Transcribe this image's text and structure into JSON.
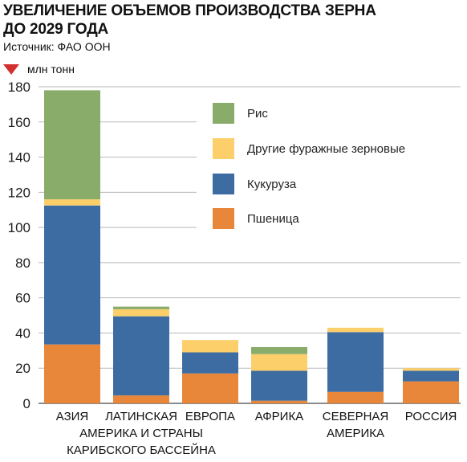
{
  "header": {
    "title_line1": "УВЕЛИЧЕНИЕ ОБЪЕМОВ ПРОИЗВОДСТВА ЗЕРНА",
    "title_line2": "ДО 2029 ГОДА",
    "source": "Источник: ФАО ООН",
    "unit": "млн тонн",
    "unit_marker_color": "#d32f2f"
  },
  "chart_data": {
    "type": "bar",
    "stacked": true,
    "title": "УВЕЛИЧЕНИЕ ОБЪЕМОВ ПРОИЗВОДСТВА ЗЕРНА ДО 2029 ГОДА",
    "ylabel": "млн тонн",
    "ylim": [
      0,
      180
    ],
    "yticks": [
      0,
      20,
      40,
      60,
      80,
      100,
      120,
      140,
      160,
      180
    ],
    "grid": true,
    "legend_position": "top-right",
    "categories": [
      [
        "АЗИЯ"
      ],
      [
        "ЛАТИНСКАЯ",
        "АМЕРИКА И СТРАНЫ",
        "КАРИБСКОГО БАССЕЙНА"
      ],
      [
        "ЕВРОПА"
      ],
      [
        "АФРИКА"
      ],
      [
        "СЕВЕРНАЯ",
        "АМЕРИКА"
      ],
      [
        "РОССИЯ"
      ]
    ],
    "series": [
      {
        "name": "Пшеница",
        "color": "#e8863a",
        "values": [
          33.5,
          4.5,
          17,
          1.5,
          6.5,
          12.5
        ]
      },
      {
        "name": "Кукуруза",
        "color": "#3d6ca3",
        "values": [
          79,
          45,
          12,
          17,
          34,
          6
        ]
      },
      {
        "name": "Другие фуражные зерновые",
        "color": "#fccf6b",
        "values": [
          3.5,
          4,
          7,
          9.5,
          2.5,
          1.5
        ]
      },
      {
        "name": "Рис",
        "color": "#8aac6b",
        "values": [
          62,
          1.5,
          0,
          4,
          0,
          0
        ]
      }
    ],
    "legend_order": [
      "Рис",
      "Другие фуражные зерновые",
      "Кукуруза",
      "Пшеница"
    ]
  }
}
